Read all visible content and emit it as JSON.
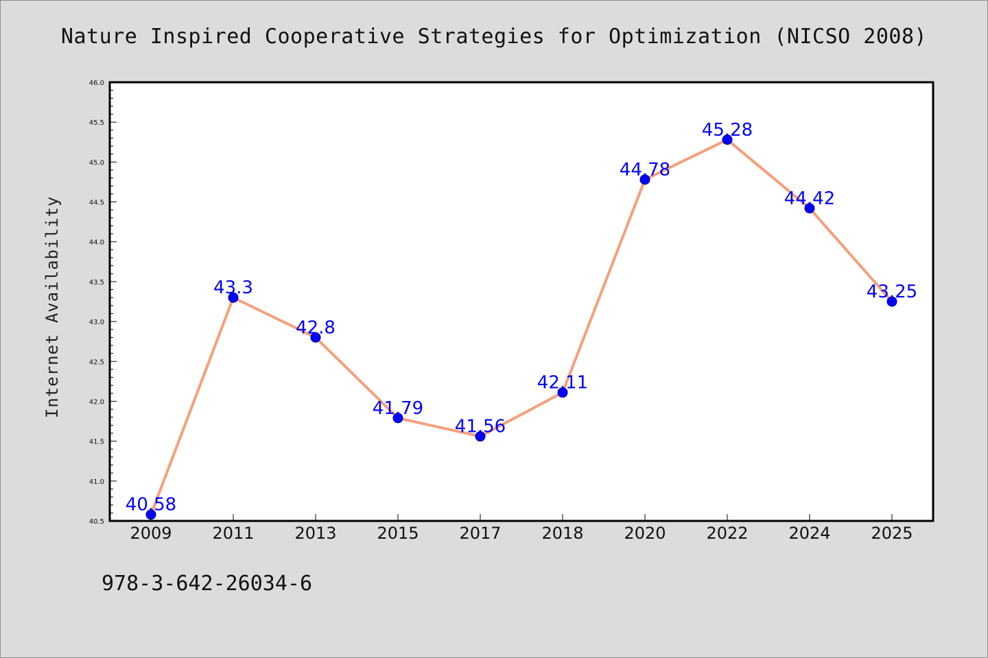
{
  "chart_data": {
    "type": "line",
    "title": "Nature Inspired Cooperative Strategies for Optimization (NICSO 2008)",
    "ylabel": "Internet Availability",
    "xlabel": "",
    "categories": [
      "2009",
      "2011",
      "2013",
      "2015",
      "2017",
      "2018",
      "2020",
      "2022",
      "2024",
      "2025"
    ],
    "values": [
      40.58,
      43.3,
      42.8,
      41.79,
      41.56,
      42.11,
      44.78,
      45.28,
      44.42,
      43.25
    ],
    "data_labels": [
      "40.58",
      "43.3",
      "42.8",
      "41.79",
      "41.56",
      "42.11",
      "44.78",
      "45.28",
      "44.42",
      "43.25"
    ],
    "ylim": [
      40.5,
      46.0
    ],
    "yticks": [
      "40.5",
      "41.0",
      "41.5",
      "42.0",
      "42.5",
      "43.0",
      "43.5",
      "44.0",
      "44.5",
      "45.0",
      "45.5",
      "46.0"
    ],
    "grid": false,
    "line_color": "#f4a07c",
    "marker_color": "#0000ff",
    "label_color": "#0000ff",
    "background_color": "#dcdcdc",
    "plot_background": "#ffffff"
  },
  "footer_text": "978-3-642-26034-6"
}
